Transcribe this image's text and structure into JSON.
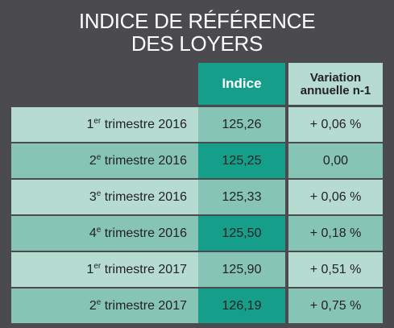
{
  "title": {
    "line1": "INDICE DE RÉFÉRENCE",
    "line2": "DES LOYERS"
  },
  "table": {
    "headers": {
      "indice": "Indice",
      "variation_line1": "Variation",
      "variation_line2": "annuelle n-1"
    },
    "rows": [
      {
        "num": "1",
        "sup": "er",
        "period": "trimestre 2016",
        "indice": "125,26",
        "variation": "+ 0,06 %"
      },
      {
        "num": "2",
        "sup": "e",
        "period": "trimestre 2016",
        "indice": "125,25",
        "variation": "0,00"
      },
      {
        "num": "3",
        "sup": "e",
        "period": "trimestre 2016",
        "indice": "125,33",
        "variation": "+ 0,06 %"
      },
      {
        "num": "4",
        "sup": "e",
        "period": "trimestre 2016",
        "indice": "125,50",
        "variation": "+ 0,18 %"
      },
      {
        "num": "1",
        "sup": "er",
        "period": "trimestre 2017",
        "indice": "125,90",
        "variation": "+ 0,51 %"
      },
      {
        "num": "2",
        "sup": "e",
        "period": "trimestre 2017",
        "indice": "126,19",
        "variation": "+ 0,75 %"
      }
    ]
  },
  "colors": {
    "background": "#4b4b4f",
    "teal_dark": "#159f8b",
    "teal_mid": "#86c4b6",
    "teal_light": "#b6dbd1"
  }
}
